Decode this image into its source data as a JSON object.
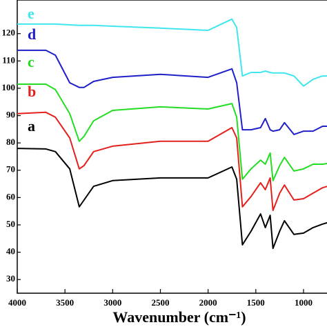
{
  "chart_data": {
    "type": "line",
    "x_label": "Wavenumber (cm⁻¹)",
    "x": [
      4000,
      3700,
      3600,
      3450,
      3350,
      3300,
      3200,
      3000,
      2500,
      2000,
      1750,
      1700,
      1640,
      1550,
      1450,
      1400,
      1350,
      1320,
      1250,
      1200,
      1100,
      1000,
      900,
      800,
      750
    ],
    "series": [
      {
        "name": "a",
        "color": "#000000",
        "values": [
          78.0,
          77.8,
          76.8,
          70.5,
          56.6,
          59.1,
          64.1,
          66.2,
          67.2,
          67.2,
          71.2,
          66.7,
          42.7,
          47.7,
          54.0,
          49.0,
          53.5,
          41.4,
          47.7,
          51.5,
          46.5,
          47.0,
          49.0,
          50.3,
          50.8
        ]
      },
      {
        "name": "b",
        "color": "#e3201b",
        "values": [
          90.7,
          91.2,
          89.4,
          81.8,
          70.5,
          71.7,
          76.8,
          78.8,
          80.6,
          80.6,
          85.6,
          81.8,
          56.6,
          60.4,
          65.4,
          62.9,
          67.2,
          55.3,
          61.6,
          64.6,
          59.1,
          59.6,
          61.6,
          63.6,
          64.1
        ]
      },
      {
        "name": "c",
        "color": "#22dd22",
        "values": [
          101.5,
          101.5,
          99.5,
          90.7,
          80.6,
          82.4,
          88.1,
          91.9,
          93.2,
          92.4,
          94.4,
          89.4,
          66.7,
          70.5,
          73.7,
          72.2,
          76.3,
          66.2,
          71.7,
          74.7,
          69.7,
          70.5,
          72.2,
          72.2,
          72.5
        ]
      },
      {
        "name": "d",
        "color": "#1f1fc8",
        "values": [
          113.9,
          113.9,
          112.1,
          102.0,
          100.3,
          100.3,
          102.5,
          104.0,
          105.1,
          104.0,
          107.1,
          102.0,
          84.8,
          84.8,
          85.6,
          88.9,
          84.8,
          84.3,
          84.8,
          87.4,
          83.1,
          84.3,
          84.3,
          86.1,
          86.1
        ]
      },
      {
        "name": "e",
        "color": "#3ee6ee",
        "values": [
          123.5,
          123.5,
          123.5,
          123.2,
          123.0,
          123.0,
          123.0,
          122.7,
          122.0,
          121.2,
          125.3,
          122.2,
          104.5,
          105.8,
          105.8,
          106.3,
          105.8,
          105.6,
          105.6,
          105.6,
          104.5,
          100.8,
          103.3,
          104.5,
          104.5
        ]
      }
    ],
    "xlim": [
      4000,
      754
    ],
    "xticks": [
      4000,
      3500,
      3000,
      2500,
      2000,
      1500,
      1000
    ],
    "ylim": [
      25,
      132.3
    ],
    "yticks": [
      30,
      40,
      50,
      60,
      70,
      80,
      90,
      100,
      110,
      120
    ]
  }
}
